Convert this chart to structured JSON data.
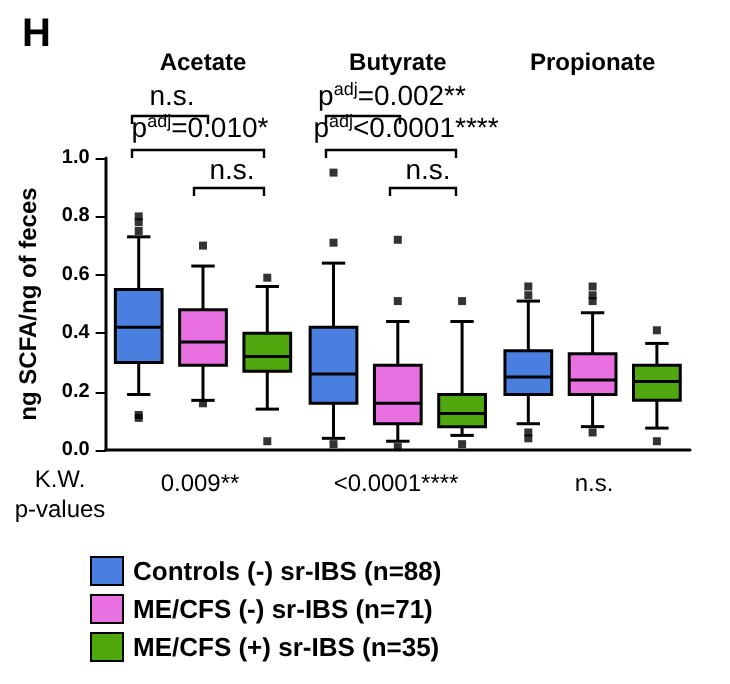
{
  "chart_data": {
    "type": "box",
    "title": "H",
    "ylabel": "ng SCFA/ng of feces",
    "categories": [
      "Acetate",
      "Butyrate",
      "Propionate"
    ],
    "ylim": [
      0,
      1
    ],
    "yticks": [
      {
        "value": 0,
        "label": "0.0"
      },
      {
        "value": 0.2,
        "label": "0.2"
      },
      {
        "value": 0.4,
        "label": "0.4"
      },
      {
        "value": 0.6,
        "label": "0.6"
      },
      {
        "value": 0.8,
        "label": "0.8"
      },
      {
        "value": 1,
        "label": "1.0"
      }
    ],
    "grid": false,
    "legend": "bottom",
    "marker": "square",
    "series": [
      {
        "name": "Controls (-) sr-IBS (n=88)",
        "color": "#4a7fe0",
        "boxes": [
          {
            "low": 0.19,
            "q1": 0.3,
            "median": 0.42,
            "q3": 0.55,
            "high": 0.73,
            "outliers": [
              0.75,
              0.78,
              0.8,
              0.12,
              0.11
            ]
          },
          {
            "low": 0.04,
            "q1": 0.16,
            "median": 0.26,
            "q3": 0.42,
            "high": 0.64,
            "outliers": [
              0.95,
              0.71,
              0.02
            ]
          },
          {
            "low": 0.09,
            "q1": 0.19,
            "median": 0.25,
            "q3": 0.34,
            "high": 0.51,
            "outliers": [
              0.53,
              0.56,
              0.06,
              0.04
            ]
          }
        ]
      },
      {
        "name": "ME/CFS (-) sr-IBS (n=71)",
        "color": "#e870e0",
        "boxes": [
          {
            "low": 0.17,
            "q1": 0.29,
            "median": 0.37,
            "q3": 0.48,
            "high": 0.63,
            "outliers": [
              0.7,
              0.16
            ]
          },
          {
            "low": 0.03,
            "q1": 0.09,
            "median": 0.16,
            "q3": 0.29,
            "high": 0.44,
            "outliers": [
              0.51,
              0.72,
              0.01
            ]
          },
          {
            "low": 0.08,
            "q1": 0.19,
            "median": 0.24,
            "q3": 0.33,
            "high": 0.47,
            "outliers": [
              0.51,
              0.53,
              0.56,
              0.06
            ]
          }
        ]
      },
      {
        "name": "ME/CFS (+) sr-IBS (n=35)",
        "color": "#4ea80e",
        "boxes": [
          {
            "low": 0.14,
            "q1": 0.27,
            "median": 0.32,
            "q3": 0.4,
            "high": 0.56,
            "outliers": [
              0.59,
              0.03
            ]
          },
          {
            "low": 0.05,
            "q1": 0.08,
            "median": 0.125,
            "q3": 0.19,
            "high": 0.44,
            "outliers": [
              0.51,
              0.02
            ]
          },
          {
            "low": 0.075,
            "q1": 0.17,
            "median": 0.235,
            "q3": 0.29,
            "high": 0.365,
            "outliers": [
              0.41,
              0.03
            ]
          }
        ]
      }
    ],
    "annotations": [
      "n.s.",
      "p$^{adj}$=0.010*",
      "n.s.",
      "p$^{adj}$=0.002**",
      "p$^{adj}$<0.0001****",
      "n.s.",
      "K.W.\np-values",
      "0.009**",
      "<0.0001****",
      "n.s."
    ]
  }
}
